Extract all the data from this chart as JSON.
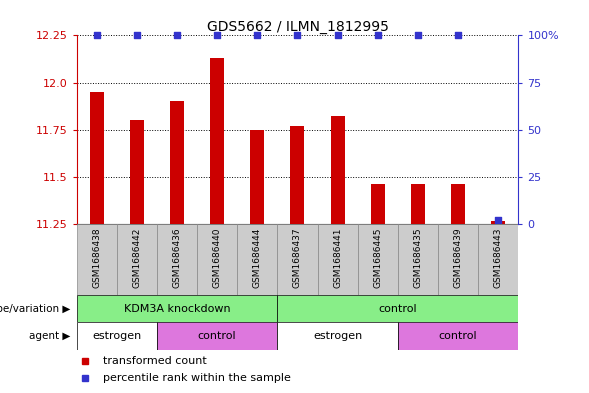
{
  "title": "GDS5662 / ILMN_1812995",
  "samples": [
    "GSM1686438",
    "GSM1686442",
    "GSM1686436",
    "GSM1686440",
    "GSM1686444",
    "GSM1686437",
    "GSM1686441",
    "GSM1686445",
    "GSM1686435",
    "GSM1686439",
    "GSM1686443"
  ],
  "bar_values": [
    11.95,
    11.8,
    11.9,
    12.13,
    11.75,
    11.77,
    11.82,
    11.46,
    11.46,
    11.46,
    11.265
  ],
  "percentile_values": [
    100,
    100,
    100,
    100,
    100,
    100,
    100,
    100,
    100,
    100,
    2
  ],
  "ylim_left": [
    11.25,
    12.25
  ],
  "yticks_left": [
    11.25,
    11.5,
    11.75,
    12.0,
    12.25
  ],
  "ylim_right": [
    0,
    100
  ],
  "yticks_right": [
    0,
    25,
    50,
    75,
    100
  ],
  "bar_color": "#cc0000",
  "percentile_color": "#3333cc",
  "background_color": "#ffffff",
  "genotype_groups": [
    {
      "label": "KDM3A knockdown",
      "start": 0,
      "end": 5,
      "color": "#88ee88"
    },
    {
      "label": "control",
      "start": 5,
      "end": 11,
      "color": "#88ee88"
    }
  ],
  "agent_groups": [
    {
      "label": "estrogen",
      "start": 0,
      "end": 2,
      "color": "#ffffff"
    },
    {
      "label": "control",
      "start": 2,
      "end": 5,
      "color": "#dd77dd"
    },
    {
      "label": "estrogen",
      "start": 5,
      "end": 8,
      "color": "#ffffff"
    },
    {
      "label": "control",
      "start": 8,
      "end": 11,
      "color": "#dd77dd"
    }
  ],
  "legend_items": [
    {
      "label": "transformed count",
      "color": "#cc0000"
    },
    {
      "label": "percentile rank within the sample",
      "color": "#3333cc"
    }
  ],
  "dotted_gridline_color": "#555555",
  "left_axis_color": "#cc0000",
  "right_axis_color": "#3333cc",
  "bar_width": 0.35,
  "sample_label_bg": "#cccccc"
}
